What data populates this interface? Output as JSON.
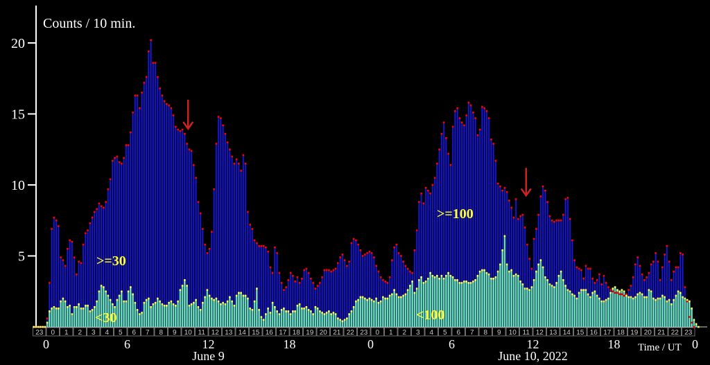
{
  "chart_data": {
    "type": "bar",
    "title": "Counts / 10 min.",
    "xlabel": "Time / UT",
    "y_ticks": [
      "5",
      "10",
      "15",
      "20"
    ],
    "ylim": [
      0,
      21.5
    ],
    "x_start_hour": 23,
    "x_end_hour": 0,
    "bins_per_hour": 6,
    "major_ticks": [
      {
        "label": "0",
        "hour": 0
      },
      {
        "label": "6",
        "hour": 6
      },
      {
        "label": "12",
        "hour": 12
      },
      {
        "label": "18",
        "hour": 18
      },
      {
        "label": "0",
        "hour": 24
      },
      {
        "label": "6",
        "hour": 30
      },
      {
        "label": "12",
        "hour": 36
      },
      {
        "label": "18",
        "hour": 42
      },
      {
        "label": "0",
        "hour": 48
      }
    ],
    "hour_labels": [
      "23",
      "0",
      "1",
      "2",
      "3",
      "4",
      "5",
      "6",
      "7",
      "8",
      "9",
      "10",
      "11",
      "12",
      "13",
      "14",
      "15",
      "16",
      "17",
      "18",
      "19",
      "20",
      "21",
      "22",
      "23",
      "0",
      "1",
      "2",
      "3",
      "4",
      "5",
      "6",
      "7",
      "8",
      "9",
      "10",
      "11",
      "12",
      "13",
      "14",
      "15",
      "16",
      "17",
      "18",
      "19",
      "20",
      "21",
      "22",
      "23"
    ],
    "date_labels": [
      {
        "text": "June 9",
        "hour": 12
      },
      {
        "text": "June 10, 2022",
        "hour": 36
      }
    ],
    "series": [
      {
        "name": ">=30",
        "color": "#00008b",
        "marker_color": "#ff0000",
        "values": [
          0,
          0,
          0,
          0,
          0,
          0,
          0.6,
          3.1,
          6.9,
          7.7,
          7.5,
          7.1,
          4.9,
          4.7,
          4.3,
          5.5,
          6.1,
          6,
          4.9,
          3.7,
          4.6,
          4.5,
          5.8,
          6.6,
          6.8,
          7.3,
          7.7,
          8.1,
          8.3,
          8.7,
          8.5,
          8.4,
          8.8,
          9.7,
          10.4,
          11.7,
          11.9,
          12,
          11.6,
          11.5,
          11.9,
          12.8,
          12.8,
          13.7,
          15.1,
          16.3,
          16.3,
          15.4,
          16.5,
          17.2,
          17.6,
          19.4,
          20.2,
          18.6,
          18.6,
          17.6,
          16.8,
          16.3,
          15.9,
          15.7,
          15.6,
          15.4,
          14.9,
          14.1,
          13.9,
          13.8,
          13.9,
          13.6,
          12.9,
          12.5,
          12.4,
          11.4,
          10.5,
          8.8,
          8,
          6.9,
          5.8,
          5.2,
          5.5,
          6.7,
          9.7,
          12.9,
          14.8,
          14.7,
          14.2,
          13.6,
          13,
          12.5,
          12,
          11.5,
          11.8,
          11.5,
          11,
          12.1,
          11.5,
          8.1,
          7.2,
          6.9,
          6.1,
          5.9,
          5.7,
          5.7,
          5.7,
          5.6,
          5.3,
          4.2,
          3.8,
          5.6,
          5.2,
          3.8,
          3.1,
          2.6,
          2.8,
          3.3,
          3.8,
          3.6,
          3.2,
          3.5,
          3.1,
          3.4,
          4,
          4.1,
          3.8,
          3.4,
          3.1,
          2.7,
          2.9,
          3.1,
          3.5,
          4,
          4,
          4,
          3.9,
          4,
          4.1,
          4.5,
          4.9,
          5.1,
          4.7,
          4.3,
          4.6,
          5.9,
          6.2,
          6.1,
          5.8,
          5.4,
          5,
          5.1,
          5.2,
          5.3,
          5.2,
          4.9,
          4.3,
          3.9,
          3.5,
          3.3,
          3.2,
          3.1,
          3.5,
          4.7,
          5.6,
          5.8,
          5.2,
          5,
          4.6,
          4.3,
          4.1,
          3.9,
          3.8,
          5.4,
          6.8,
          8.8,
          9.4,
          8.7,
          9.8,
          9.6,
          9.4,
          10,
          10.5,
          11.5,
          12.5,
          13.6,
          14.4,
          13.3,
          12.2,
          11.4,
          14.1,
          15.2,
          15.4,
          14.7,
          14.4,
          14.2,
          14.9,
          15.8,
          15.6,
          15.1,
          14.7,
          13.5,
          13.9,
          15.5,
          15.4,
          15.2,
          14.7,
          13.2,
          12.9,
          11.7,
          10.1,
          9.9,
          9.6,
          9.8,
          9.5,
          8.9,
          8.4,
          7.7,
          9,
          7.6,
          7.8,
          7.9,
          7,
          5.8,
          4.8,
          4.1,
          6.2,
          6.9,
          7.9,
          9.2,
          9.9,
          9.6,
          8.8,
          7.8,
          7.5,
          7.4,
          7.5,
          7.5,
          7.5,
          7.9,
          9,
          9.1,
          7.6,
          6.1,
          4.7,
          4.2,
          4.1,
          4,
          3.4,
          4.3,
          4.1,
          4.1,
          3.4,
          3.1,
          3.3,
          3.7,
          3,
          3.6,
          3.1,
          2.8,
          2.6,
          2.5,
          2.4,
          2.4,
          2.3,
          2.3,
          2.2,
          2.3,
          2.6,
          2.9,
          3.5,
          4.4,
          4.9,
          4.3,
          3.7,
          3.3,
          3.5,
          3.8,
          4.4,
          4.6,
          5.2,
          4.6,
          3.3,
          4.2,
          5.1,
          5.7,
          4.6,
          3.3,
          3.9,
          4.2,
          4.2,
          5.2,
          5.1,
          2.8,
          1.8,
          0.7,
          0.3,
          0
        ]
      },
      {
        "name": ">=100",
        "color": "#00008b",
        "marker_color": "#ff0000",
        "values": []
      },
      {
        "name": "<30",
        "color": "#3cb8a8",
        "marker_color": "#ffff66",
        "values": [
          0,
          0,
          0,
          0,
          0,
          0,
          0.3,
          1.1,
          1.3,
          1.4,
          1.3,
          1.3,
          1.8,
          2,
          1.8,
          1.4,
          1.5,
          0.9,
          1.4,
          1.4,
          1.6,
          1.3,
          1.3,
          1.5,
          1.5,
          1.1,
          1.2,
          1.4,
          1.8,
          2.5,
          2.9,
          2.8,
          2.5,
          2.2,
          1.9,
          1.6,
          1.4,
          1.9,
          2.2,
          2.5,
          1.8,
          1.8,
          2.5,
          2.8,
          2.3,
          1.7,
          1.2,
          0.9,
          1,
          1.7,
          1.9,
          2,
          1.4,
          1.6,
          1.7,
          2,
          1.8,
          1.6,
          1.5,
          1.5,
          1.7,
          1.8,
          1.6,
          1.5,
          1.8,
          2.6,
          2.9,
          3.3,
          2.9,
          1.5,
          1.6,
          1.7,
          1.9,
          1.4,
          1.2,
          1.7,
          2.1,
          2.6,
          2.2,
          2,
          1.9,
          2,
          1.8,
          1.6,
          1.7,
          1.6,
          1.8,
          2.1,
          1.8,
          1.5,
          2.2,
          2.4,
          2.4,
          2.2,
          2.2,
          2,
          1.3,
          1.2,
          1.8,
          2.7,
          1.2,
          0.7,
          0.5,
          0.9,
          1.3,
          1,
          1.7,
          1.4,
          1.1,
          0.9,
          1.2,
          1.3,
          1.1,
          1.1,
          0.9,
          1.1,
          1.1,
          1.5,
          1.6,
          1.3,
          1.3,
          1.4,
          1.2,
          1.1,
          0.9,
          1.4,
          1.3,
          1.1,
          1,
          0.9,
          1,
          1.1,
          0.9,
          1,
          0.9,
          0.6,
          0.5,
          0.4,
          0.5,
          0.6,
          0.9,
          1.1,
          1.4,
          1.8,
          1.9,
          2.1,
          2.1,
          2,
          1.9,
          2,
          1.9,
          1.8,
          2,
          1.7,
          1.8,
          2.1,
          2,
          2,
          2.2,
          2.3,
          2.6,
          2.3,
          2.1,
          2.1,
          2.2,
          2.3,
          2.6,
          2.9,
          3.2,
          2.4,
          2.7,
          3.3,
          3.5,
          3.1,
          3.2,
          3.4,
          3.8,
          3.6,
          3.5,
          3.6,
          3.4,
          3.6,
          3.4,
          3.6,
          3.8,
          3.6,
          3.5,
          3.3,
          3.3,
          3.1,
          3.1,
          3.2,
          3.2,
          3.1,
          3.1,
          3.2,
          3.3,
          3.6,
          3.9,
          4,
          4,
          3.8,
          3.7,
          3.4,
          3.4,
          3.5,
          3.9,
          4.4,
          5.4,
          6.4,
          4.4,
          3.9,
          4,
          3.6,
          3.7,
          3.6,
          3.2,
          3,
          2.7,
          2.7,
          2.6,
          2.8,
          3.3,
          3.9,
          4.4,
          4.7,
          4.2,
          3.5,
          3.3,
          3,
          2.9,
          2.8,
          3.1,
          3.6,
          3.9,
          3.3,
          2.9,
          2.6,
          2.5,
          2.3,
          2.2,
          2,
          2.4,
          2.6,
          2.6,
          2.6,
          2.3,
          2.1,
          2.4,
          2.5,
          2.2,
          2,
          1.8,
          1.8,
          1.9,
          2,
          2.4,
          2.7,
          2.8,
          2.6,
          2.5,
          2.6,
          2.5,
          2.2,
          2.1,
          2.1,
          2,
          2.1,
          2.3,
          2.4,
          2.3,
          2.1,
          2.1,
          2.6,
          2.5,
          2,
          1.9,
          2,
          2,
          2.2,
          2.1,
          1.8,
          1.9,
          1.6,
          1.9,
          2.2,
          2.5,
          2.4,
          2.1,
          2,
          1.9,
          1.8,
          1.3,
          0.5,
          0.2,
          0
        ]
      },
      {
        "name": "<100",
        "color": "#3cb8a8",
        "marker_color": "#ffff66",
        "values": []
      }
    ],
    "series_labels_color": "#ffff33",
    "annotations": [
      {
        "type": "arrow",
        "hour": 10.5,
        "y_top": 16.0,
        "y_bottom": 14.0,
        "color": "#cc2222"
      },
      {
        "type": "arrow",
        "hour": 35.5,
        "y_top": 11.2,
        "y_bottom": 9.3,
        "color": "#cc2222"
      }
    ],
    "grid": false
  }
}
